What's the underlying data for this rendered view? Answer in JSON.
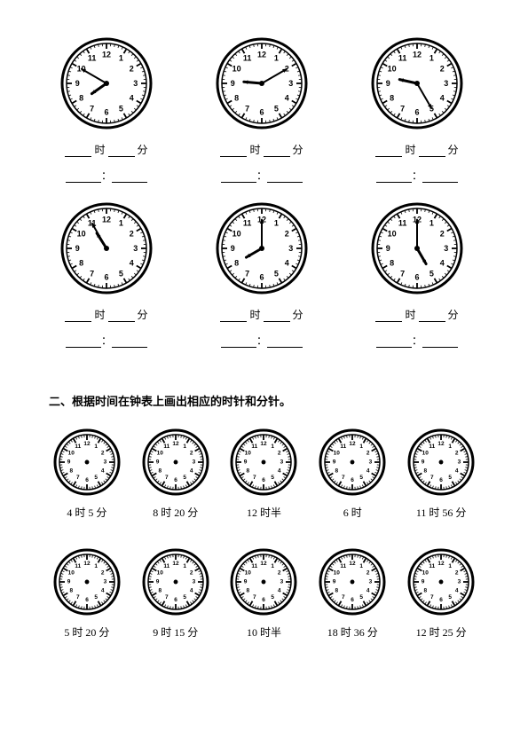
{
  "section1": {
    "clock_radius": 50,
    "hour_label": "时",
    "minute_label": "分",
    "colon": "：",
    "clocks": [
      {
        "hour": 7,
        "minute": 50
      },
      {
        "hour": 9,
        "minute": 10
      },
      {
        "hour": 9,
        "minute": 25
      },
      {
        "hour": 10,
        "minute": 55
      },
      {
        "hour": 8,
        "minute": 0
      },
      {
        "hour": 5,
        "minute": 0
      }
    ],
    "outer_stroke": "#000000",
    "tick_stroke": "#000000",
    "hand_stroke": "#000000",
    "face_fill": "#ffffff"
  },
  "section2_title": "二、根据时间在钟表上画出相应的时针和分针。",
  "section2": {
    "clock_radius": 36,
    "labels": [
      "4 时 5 分",
      "8 时 20 分",
      "12 时半",
      "6 时",
      "11 时 56 分"
    ]
  },
  "section3": {
    "clock_radius": 36,
    "labels": [
      "5 时 20 分",
      "9 时 15 分",
      "10 时半",
      "18 时 36 分",
      "12 时 25 分"
    ]
  },
  "style": {
    "font_family": "SimSun",
    "body_font_size": 12,
    "title_font_size": 13,
    "text_color": "#000000",
    "background_color": "#ffffff",
    "blank_width": 30,
    "blank_wide_width": 40,
    "clock_number_fontsize_large": 9,
    "clock_number_fontsize_small": 6.5,
    "clock_outer_border_width": 3,
    "clock_inner_border_width": 1.5,
    "minute_tick_len": 3,
    "hour_tick_len": 6,
    "hour_hand_len_ratio": 0.45,
    "minute_hand_len_ratio": 0.72,
    "hour_hand_width": 3,
    "minute_hand_width": 2
  }
}
